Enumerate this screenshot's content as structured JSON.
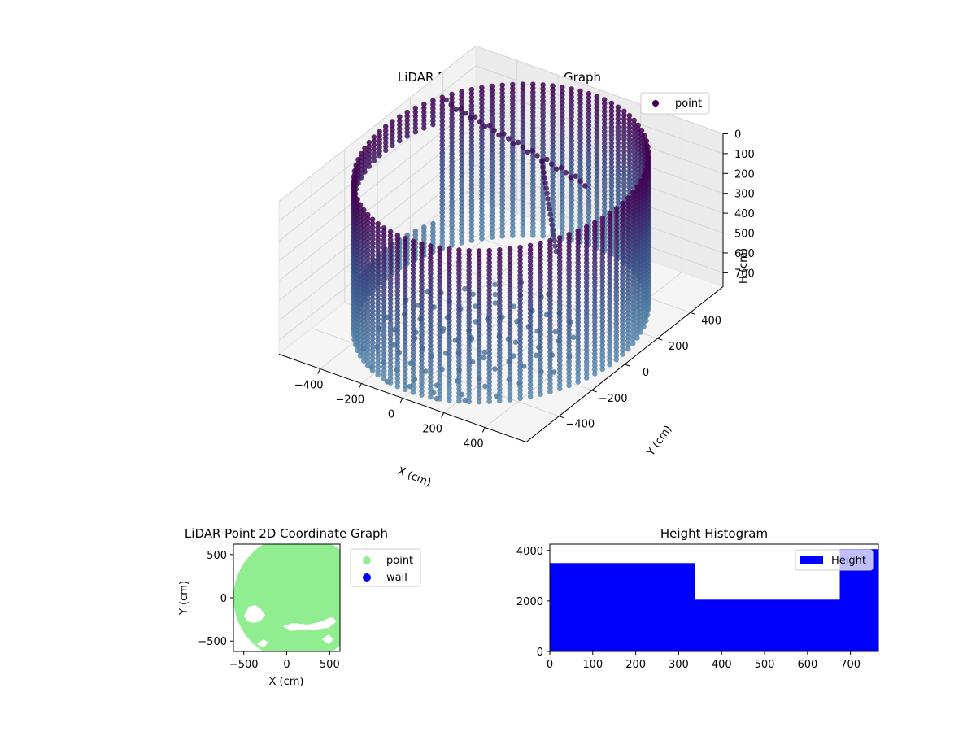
{
  "chart_data": [
    {
      "type": "scatter3d",
      "title": "LiDAR Point 3D Coordinate Graph",
      "xlabel": "X (cm)",
      "ylabel": "Y (cm)",
      "zlabel": "H (cm)",
      "legend": {
        "entries": [
          "point"
        ],
        "position": "upper-right"
      },
      "x_ticks": [
        "−400",
        "−200",
        "0",
        "200",
        "400"
      ],
      "y_ticks": [
        "−400",
        "−200",
        "0",
        "200",
        "400"
      ],
      "z_ticks": [
        "0",
        "100",
        "200",
        "300",
        "400",
        "500",
        "600",
        "700"
      ],
      "xlim": [
        -600,
        600
      ],
      "ylim": [
        -600,
        600
      ],
      "zlim": [
        0,
        770
      ],
      "z_inverted": true,
      "grid": true,
      "colormap": [
        "#440154",
        "#3b528b",
        "#5a8cb0"
      ],
      "series": [
        {
          "name": "point",
          "shape": "cylinder-wall",
          "radius": 560,
          "height_range": [
            0,
            770
          ],
          "angle_step_deg": 4,
          "height_step": 20,
          "open_sector_deg": [
            155,
            215
          ],
          "color": "#440154"
        }
      ]
    },
    {
      "type": "scatter",
      "title": "LiDAR Point 2D Coordinate Graph",
      "xlabel": "X (cm)",
      "ylabel": "Y (cm)",
      "x_ticks": [
        "−500",
        "0",
        "500"
      ],
      "y_ticks": [
        "500",
        "0",
        "−500"
      ],
      "xlim": [
        -620,
        620
      ],
      "ylim": [
        -620,
        620
      ],
      "grid": false,
      "legend": {
        "entries": [
          "point",
          "wall"
        ],
        "position": "outside-right"
      },
      "series": [
        {
          "name": "point",
          "color": "#90ee90",
          "shape": "disk",
          "center": [
            120,
            20
          ],
          "radius": 580
        },
        {
          "name": "wall",
          "color": "#0000ff",
          "points": []
        }
      ]
    },
    {
      "type": "bar",
      "title": "Height Histogram",
      "legend": {
        "entries": [
          "Height"
        ],
        "position": "upper-right"
      },
      "bin_edges": [
        0,
        337,
        675,
        1012
      ],
      "counts": [
        3500,
        2050,
        4050
      ],
      "xlim": [
        0,
        765
      ],
      "ylim": [
        0,
        4250
      ],
      "x_ticks": [
        "0",
        "100",
        "200",
        "300",
        "400",
        "500",
        "600",
        "700"
      ],
      "y_ticks": [
        "0",
        "2000",
        "4000"
      ],
      "color": "#0000ff",
      "grid": false
    }
  ]
}
